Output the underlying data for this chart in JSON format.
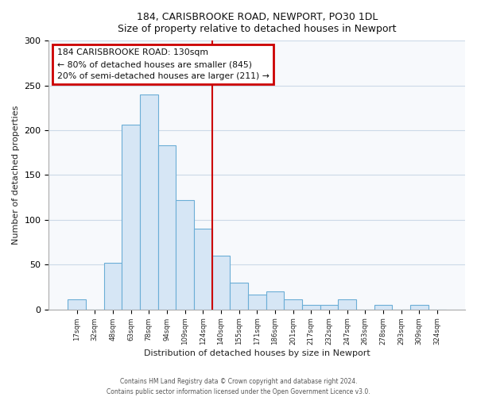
{
  "title": "184, CARISBROOKE ROAD, NEWPORT, PO30 1DL",
  "subtitle": "Size of property relative to detached houses in Newport",
  "xlabel": "Distribution of detached houses by size in Newport",
  "ylabel": "Number of detached properties",
  "bar_labels": [
    "17sqm",
    "32sqm",
    "48sqm",
    "63sqm",
    "78sqm",
    "94sqm",
    "109sqm",
    "124sqm",
    "140sqm",
    "155sqm",
    "171sqm",
    "186sqm",
    "201sqm",
    "217sqm",
    "232sqm",
    "247sqm",
    "263sqm",
    "278sqm",
    "293sqm",
    "309sqm",
    "324sqm"
  ],
  "bar_heights": [
    11,
    0,
    52,
    206,
    240,
    183,
    122,
    90,
    60,
    30,
    17,
    20,
    11,
    5,
    5,
    11,
    0,
    5,
    0,
    5,
    0
  ],
  "bar_color": "#d6e6f5",
  "bar_edge_color": "#6baed6",
  "background_color": "#ffffff",
  "plot_bg_color": "#f7f9fc",
  "grid_color": "#ccd9e8",
  "vline_x_index": 7.5,
  "vline_color": "#cc0000",
  "annotation_line1": "184 CARISBROOKE ROAD: 130sqm",
  "annotation_line2": "← 80% of detached houses are smaller (845)",
  "annotation_line3": "20% of semi-detached houses are larger (211) →",
  "annotation_box_color": "#ffffff",
  "annotation_box_edge_color": "#cc0000",
  "ylim": [
    0,
    300
  ],
  "yticks": [
    0,
    50,
    100,
    150,
    200,
    250,
    300
  ],
  "footnote1": "Contains HM Land Registry data © Crown copyright and database right 2024.",
  "footnote2": "Contains public sector information licensed under the Open Government Licence v3.0."
}
